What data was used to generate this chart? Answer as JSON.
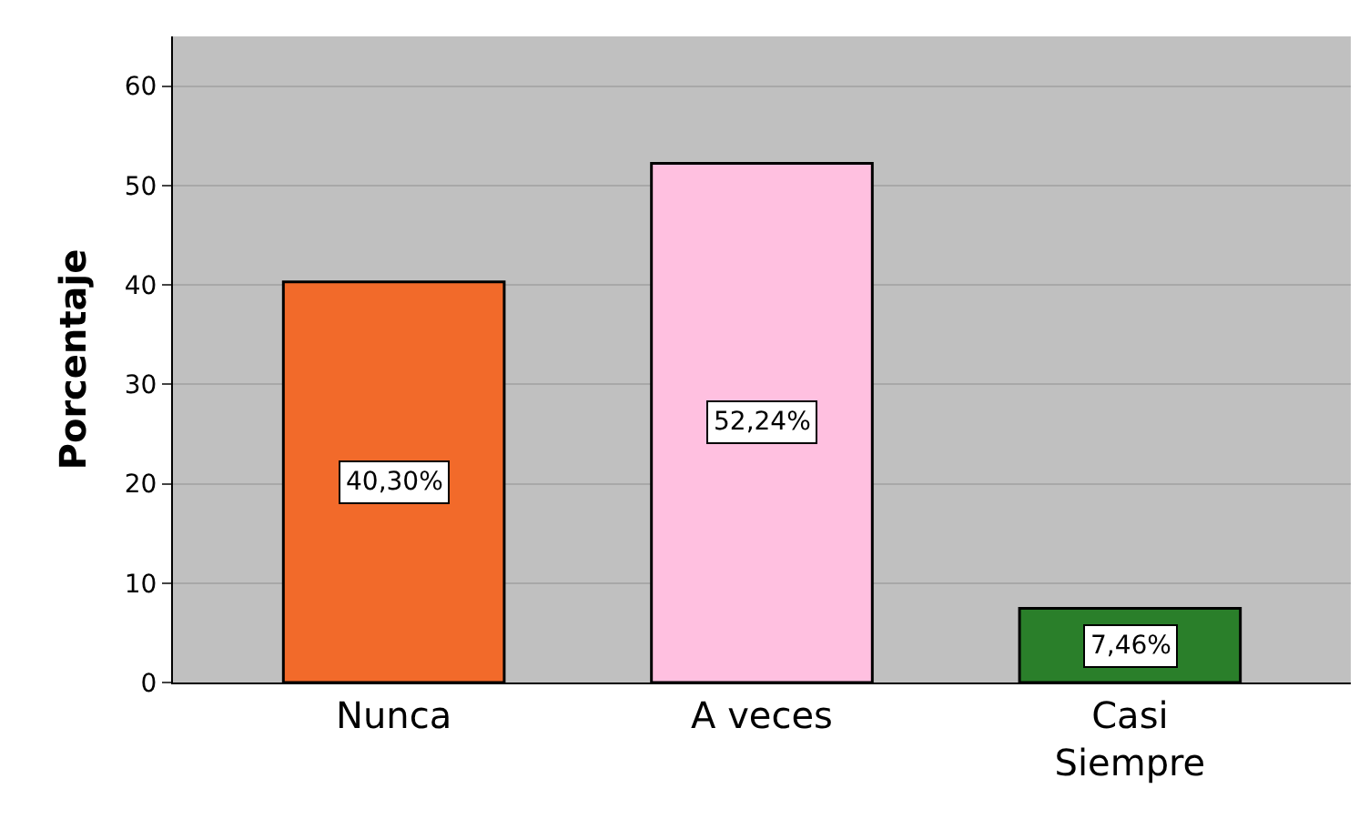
{
  "chart_data": {
    "type": "bar",
    "ylabel": "Porcentaje",
    "categories": [
      "Nunca",
      "A veces",
      "Casi Siempre"
    ],
    "values": [
      40.3,
      52.24,
      7.46
    ],
    "colors": [
      "#f26a2a",
      "#ffc0e0",
      "#2a7f2a"
    ],
    "value_labels": [
      "40,30%",
      "52,24%",
      "7,46%"
    ],
    "ylim": [
      0,
      65
    ],
    "yticks": [
      0,
      10,
      20,
      30,
      40,
      50,
      60
    ],
    "grid": "y"
  }
}
